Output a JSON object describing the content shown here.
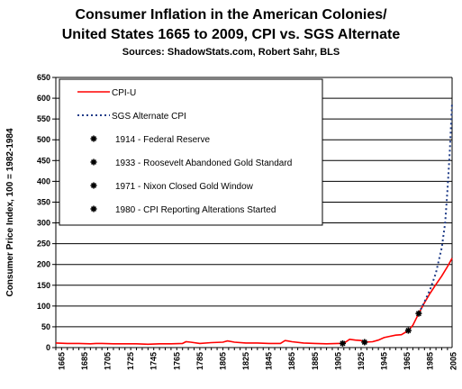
{
  "chart_data": {
    "type": "line",
    "title": "Consumer Inflation in the American Colonies/",
    "title2": "United States 1665 to 2009, CPI vs. SGS Alternate",
    "subtitle": "Sources: ShadowStats.com, Robert Sahr, BLS",
    "ylabel": "Consumer Price Index, 100 = 1982-1984",
    "xlabel": "",
    "xlim": [
      1665,
      2009
    ],
    "ylim": [
      0,
      650
    ],
    "yticks": [
      0,
      50,
      100,
      150,
      200,
      250,
      300,
      350,
      400,
      450,
      500,
      550,
      600,
      650
    ],
    "xticks": [
      "1665",
      "1685",
      "1705",
      "1725",
      "1745",
      "1765",
      "1785",
      "1805",
      "1825",
      "1845",
      "1865",
      "1885",
      "1905",
      "1925",
      "1945",
      "1965",
      "1985",
      "2005"
    ],
    "grid": "horizontal",
    "legend_placement": "top-left",
    "series": [
      {
        "name": "CPI-U",
        "color": "#ff0000",
        "style": "solid",
        "x": [
          1665,
          1675,
          1685,
          1695,
          1700,
          1705,
          1715,
          1725,
          1735,
          1745,
          1755,
          1765,
          1775,
          1778,
          1782,
          1790,
          1800,
          1810,
          1814,
          1820,
          1830,
          1840,
          1850,
          1860,
          1864,
          1866,
          1870,
          1880,
          1890,
          1900,
          1910,
          1914,
          1917,
          1920,
          1925,
          1930,
          1933,
          1940,
          1945,
          1950,
          1955,
          1960,
          1965,
          1970,
          1971,
          1975,
          1980,
          1985,
          1990,
          1995,
          2000,
          2005,
          2009
        ],
        "y": [
          11,
          10,
          10,
          9,
          10,
          10,
          9,
          9,
          9,
          8,
          9,
          9,
          10,
          14,
          13,
          10,
          12,
          13,
          16,
          13,
          11,
          11,
          10,
          10,
          17,
          16,
          14,
          11,
          10,
          9,
          10,
          10,
          14,
          20,
          18,
          17,
          13,
          14,
          18,
          24,
          27,
          30,
          31,
          39,
          41,
          54,
          82,
          108,
          131,
          152,
          172,
          195,
          215
        ]
      },
      {
        "name": "SGS Alternate CPI",
        "color": "#1f3c88",
        "style": "dotted",
        "x": [
          1980,
          1985,
          1990,
          1995,
          2000,
          2003,
          2005,
          2007,
          2009
        ],
        "y": [
          82,
          110,
          140,
          180,
          240,
          300,
          380,
          470,
          590
        ]
      }
    ],
    "markers": [
      {
        "label": "1914 - Federal Reserve",
        "x": 1914,
        "y": 10
      },
      {
        "label": "1933 - Roosevelt Abandoned Gold Standard",
        "x": 1933,
        "y": 13
      },
      {
        "label": "1971 - Nixon Closed Gold Window",
        "x": 1971,
        "y": 41
      },
      {
        "label": "1980 - CPI Reporting Alterations Started",
        "x": 1980,
        "y": 82
      }
    ]
  }
}
